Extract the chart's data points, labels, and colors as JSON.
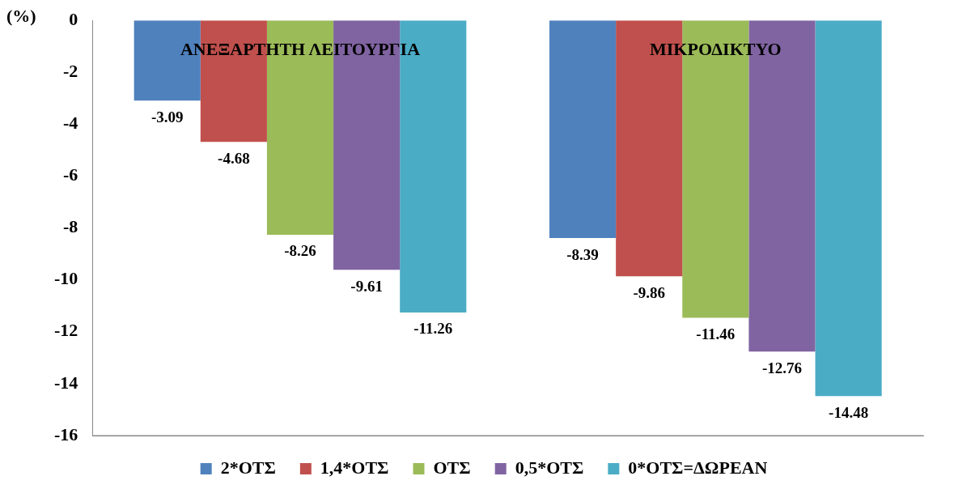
{
  "chart_data": {
    "type": "bar",
    "ylabel": "(%)",
    "categories": [
      "ΑΝΕΞΑΡΤΗΤΗ ΛΕΙΤΟΥΡΓΙΑ",
      "ΜΙΚΡΟΔΙΚΤΥΟ"
    ],
    "series": [
      {
        "name": "2*ΟΤΣ",
        "color": "#4f81bd",
        "values": [
          -3.09,
          -8.39
        ]
      },
      {
        "name": "1,4*ΟΤΣ",
        "color": "#c0504d",
        "values": [
          -4.68,
          -9.86
        ]
      },
      {
        "name": "ΟΤΣ",
        "color": "#9bbb59",
        "values": [
          -8.26,
          -11.46
        ]
      },
      {
        "name": "0,5*ΟΤΣ",
        "color": "#8064a2",
        "values": [
          -9.61,
          -12.76
        ]
      },
      {
        "name": "0*ΟΤΣ=ΔΩΡΕΑΝ",
        "color": "#4bacc6",
        "values": [
          -11.26,
          -14.48
        ]
      }
    ],
    "ylim": [
      -16,
      0
    ],
    "yticks": [
      -16,
      -14,
      -12,
      -10,
      -8,
      -6,
      -4,
      -2,
      0
    ],
    "grid": false,
    "legend": "bottom",
    "data_labels": true
  }
}
